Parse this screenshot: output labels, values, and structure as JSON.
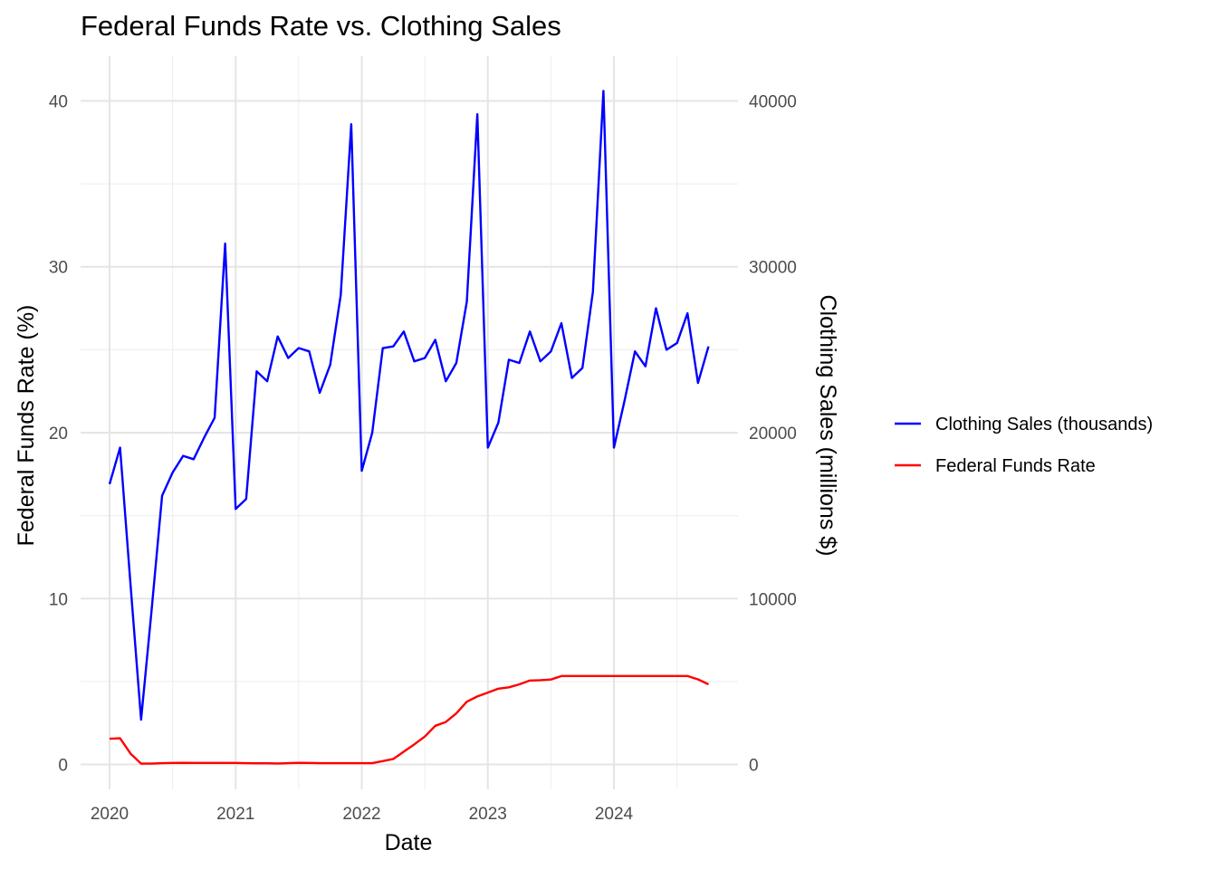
{
  "chart_data": {
    "type": "line",
    "title": "Federal Funds Rate vs. Clothing Sales",
    "xlabel": "Date",
    "ylabel": "Federal Funds Rate (%)",
    "y2label": "Clothing Sales (millions $)",
    "ylim": [
      -1.5,
      42.7
    ],
    "y2lim": [
      -1500,
      42700
    ],
    "y_ticks": [
      0,
      10,
      20,
      30,
      40
    ],
    "y2_ticks": [
      0,
      10000,
      20000,
      30000,
      40000
    ],
    "x_ticks": [
      "2020",
      "2021",
      "2022",
      "2023",
      "2024"
    ],
    "grid": true,
    "legend_position": "right",
    "legend": [
      {
        "label": "Clothing Sales (thousands)",
        "color": "#0000ff"
      },
      {
        "label": "Federal Funds Rate",
        "color": "#ff0000"
      }
    ],
    "x": [
      "2020-01",
      "2020-02",
      "2020-03",
      "2020-04",
      "2020-05",
      "2020-06",
      "2020-07",
      "2020-08",
      "2020-09",
      "2020-10",
      "2020-11",
      "2020-12",
      "2021-01",
      "2021-02",
      "2021-03",
      "2021-04",
      "2021-05",
      "2021-06",
      "2021-07",
      "2021-08",
      "2021-09",
      "2021-10",
      "2021-11",
      "2021-12",
      "2022-01",
      "2022-02",
      "2022-03",
      "2022-04",
      "2022-05",
      "2022-06",
      "2022-07",
      "2022-08",
      "2022-09",
      "2022-10",
      "2022-11",
      "2022-12",
      "2023-01",
      "2023-02",
      "2023-03",
      "2023-04",
      "2023-05",
      "2023-06",
      "2023-07",
      "2023-08",
      "2023-09",
      "2023-10",
      "2023-11",
      "2023-12",
      "2024-01",
      "2024-02",
      "2024-03",
      "2024-04",
      "2024-05",
      "2024-06",
      "2024-07",
      "2024-08",
      "2024-09",
      "2024-10"
    ],
    "series": [
      {
        "name": "Clothing Sales (thousands)",
        "color": "#0000ff",
        "axis": "left",
        "values": [
          16.9,
          19.1,
          10.8,
          2.7,
          9.3,
          16.2,
          17.6,
          18.6,
          18.4,
          19.7,
          20.9,
          31.4,
          15.4,
          16.0,
          23.7,
          23.1,
          25.8,
          24.5,
          25.1,
          24.9,
          22.4,
          24.1,
          28.3,
          38.6,
          17.7,
          20.0,
          25.1,
          25.2,
          26.1,
          24.3,
          24.5,
          25.6,
          23.1,
          24.2,
          27.9,
          39.2,
          19.1,
          20.6,
          24.4,
          24.2,
          26.1,
          24.3,
          24.9,
          26.6,
          23.3,
          23.9,
          28.5,
          40.6,
          19.1,
          21.9,
          24.9,
          24.0,
          27.5,
          25.0,
          25.4,
          27.2,
          23.0,
          25.2
        ]
      },
      {
        "name": "Federal Funds Rate",
        "color": "#ff0000",
        "axis": "left",
        "values": [
          1.55,
          1.58,
          0.65,
          0.05,
          0.05,
          0.08,
          0.09,
          0.1,
          0.09,
          0.09,
          0.09,
          0.09,
          0.09,
          0.08,
          0.07,
          0.07,
          0.06,
          0.08,
          0.1,
          0.09,
          0.08,
          0.08,
          0.08,
          0.08,
          0.08,
          0.08,
          0.2,
          0.33,
          0.77,
          1.21,
          1.68,
          2.33,
          2.56,
          3.08,
          3.78,
          4.1,
          4.33,
          4.57,
          4.65,
          4.83,
          5.06,
          5.08,
          5.12,
          5.33,
          5.33,
          5.33,
          5.33,
          5.33,
          5.33,
          5.33,
          5.33,
          5.33,
          5.33,
          5.33,
          5.33,
          5.33,
          5.13,
          4.83
        ]
      }
    ]
  }
}
